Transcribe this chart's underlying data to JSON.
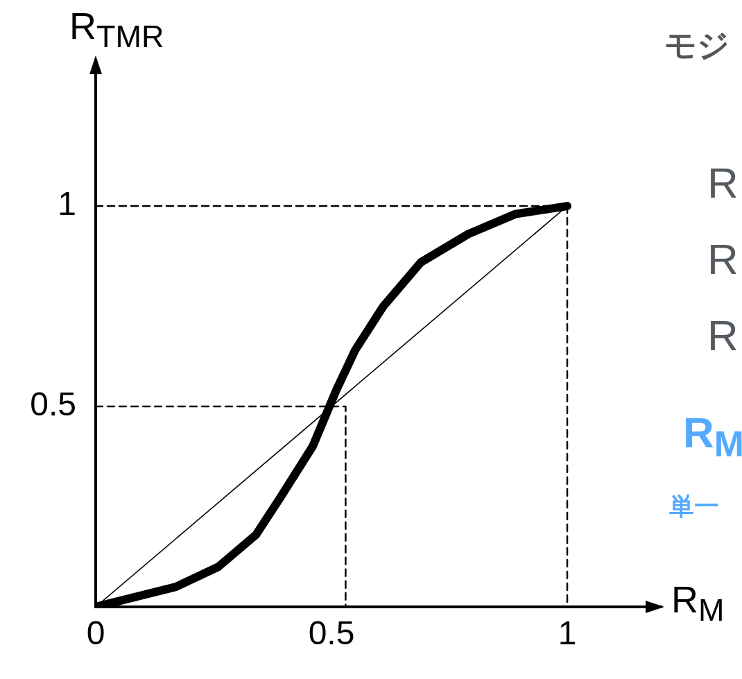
{
  "chart_data": {
    "type": "line",
    "xlabel": "R$_{M}$",
    "ylabel": "R$_{TMR}$",
    "annotations": [
      "モジ",
      "R",
      "R",
      "R",
      "R$_{M}$",
      "単一"
    ],
    "series": [
      {
        "type": "line",
        "color": "#000000",
        "x": [
          0,
          0.17,
          0.26,
          0.34,
          0.39,
          0.46,
          0.51,
          0.55,
          0.61,
          0.69,
          0.79,
          0.89,
          1
        ],
        "values": [
          0,
          0.05,
          0.1,
          0.18,
          0.27,
          0.4,
          0.54,
          0.64,
          0.75,
          0.86,
          0.93,
          0.98,
          1
        ]
      },
      {
        "type": "line",
        "color": "#000000",
        "x": [
          0,
          1
        ],
        "values": [
          0,
          1
        ]
      },
      {
        "type": "line",
        "color": "#000000",
        "line_style": "dashed",
        "x": [
          0,
          0.53,
          0.53
        ],
        "values": [
          0.5,
          0.5,
          0
        ]
      },
      {
        "type": "line",
        "color": "#000000",
        "line_style": "dashed",
        "x": [
          0,
          1,
          1
        ],
        "values": [
          1,
          1,
          0
        ]
      }
    ],
    "xlim": [
      0,
      1.2
    ],
    "ylim": [
      0,
      1.36
    ],
    "xticks": [
      0,
      0.5,
      1
    ],
    "yticks": [
      0.5,
      1
    ],
    "grid": false,
    "legend": false,
    "marker": "none"
  }
}
